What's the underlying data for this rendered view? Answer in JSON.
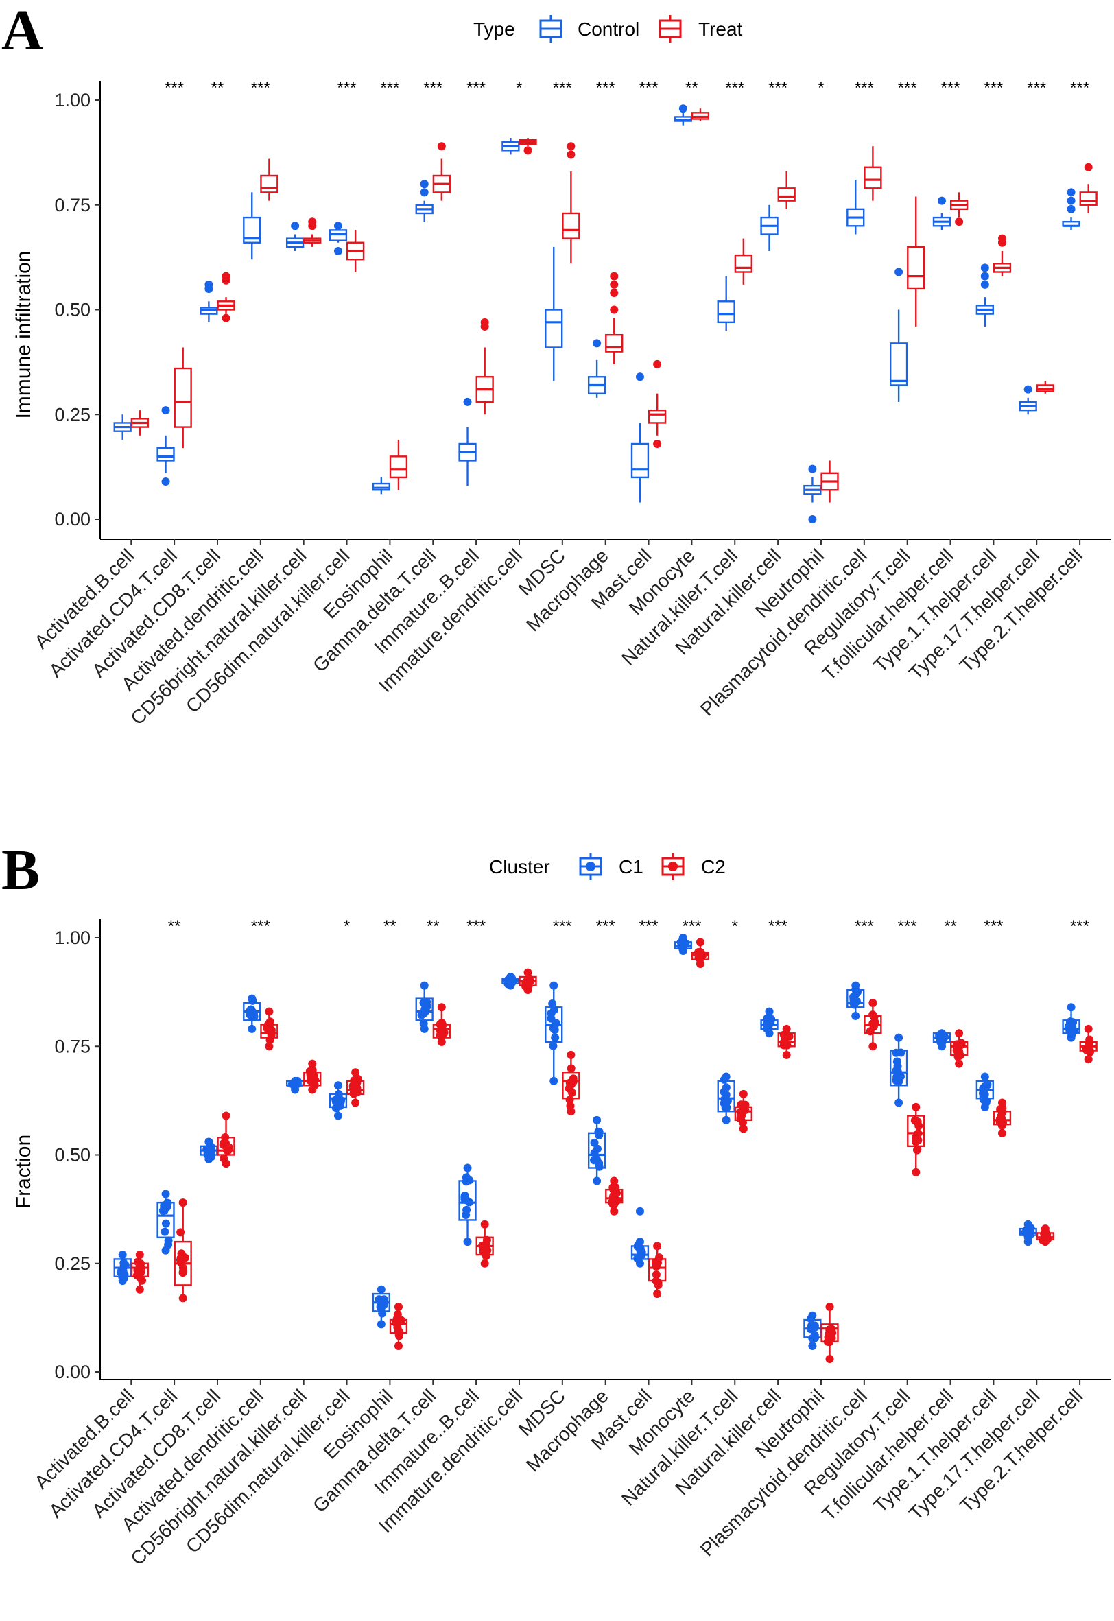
{
  "colors": {
    "control": "#1764e8",
    "treat": "#e8131b"
  },
  "chart_data": [
    {
      "panel": "A",
      "type": "boxplot",
      "ylabel": "Immune infiltration",
      "xlabel": "",
      "ylim": [
        -0.05,
        1.07
      ],
      "yticks": [
        "0.00",
        "0.25",
        "0.50",
        "0.75",
        "1.00"
      ],
      "show_points": false,
      "legend": {
        "title": "Type",
        "entries": [
          "Control",
          "Treat"
        ]
      },
      "categories": [
        "Activated.B.cell",
        "Activated.CD4.T.cell",
        "Activated.CD8.T.cell",
        "Activated.dendritic.cell",
        "CD56bright.natural.killer.cell",
        "CD56dim.natural.killer.cell",
        "Eosinophil",
        "Gamma.delta.T.cell",
        "Immature..B.cell",
        "Immature.dendritic.cell",
        "MDSC",
        "Macrophage",
        "Mast.cell",
        "Monocyte",
        "Natural.killer.T.cell",
        "Natural.killer.cell",
        "Neutrophil",
        "Plasmacytoid.dendritic.cell",
        "Regulatory.T.cell",
        "T.follicular.helper.cell",
        "Type.1.T.helper.cell",
        "Type.17.T.helper.cell",
        "Type.2.T.helper.cell"
      ],
      "significance": [
        "",
        "***",
        "**",
        "***",
        "",
        "***",
        "***",
        "***",
        "***",
        "*",
        "***",
        "***",
        "***",
        "**",
        "***",
        "***",
        "*",
        "***",
        "***",
        "***",
        "***",
        "***",
        "***"
      ],
      "series": [
        {
          "name": "Control",
          "boxes": [
            [
              0.19,
              0.21,
              0.22,
              0.23,
              0.25,
              []
            ],
            [
              0.11,
              0.14,
              0.15,
              0.17,
              0.2,
              [
                0.26,
                0.09
              ]
            ],
            [
              0.47,
              0.49,
              0.5,
              0.505,
              0.52,
              [
                0.55,
                0.56
              ]
            ],
            [
              0.62,
              0.66,
              0.67,
              0.72,
              0.78,
              []
            ],
            [
              0.64,
              0.65,
              0.66,
              0.67,
              0.68,
              [
                0.7
              ]
            ],
            [
              0.66,
              0.665,
              0.68,
              0.69,
              0.7,
              [
                0.64,
                0.7
              ]
            ],
            [
              0.06,
              0.07,
              0.075,
              0.085,
              0.1,
              []
            ],
            [
              0.71,
              0.73,
              0.74,
              0.75,
              0.76,
              [
                0.78,
                0.8
              ]
            ],
            [
              0.08,
              0.14,
              0.16,
              0.18,
              0.22,
              [
                0.28
              ]
            ],
            [
              0.87,
              0.88,
              0.89,
              0.9,
              0.91,
              []
            ],
            [
              0.33,
              0.41,
              0.47,
              0.5,
              0.65,
              []
            ],
            [
              0.29,
              0.3,
              0.32,
              0.34,
              0.38,
              [
                0.42
              ]
            ],
            [
              0.04,
              0.1,
              0.12,
              0.18,
              0.23,
              [
                0.34
              ]
            ],
            [
              0.94,
              0.95,
              0.953,
              0.96,
              0.97,
              [
                0.98
              ]
            ],
            [
              0.45,
              0.47,
              0.49,
              0.52,
              0.58,
              []
            ],
            [
              0.64,
              0.68,
              0.7,
              0.72,
              0.75,
              []
            ],
            [
              0.04,
              0.06,
              0.07,
              0.08,
              0.1,
              [
                0.12,
                0.0
              ]
            ],
            [
              0.68,
              0.7,
              0.72,
              0.74,
              0.81,
              []
            ],
            [
              0.28,
              0.32,
              0.33,
              0.42,
              0.5,
              [
                0.59
              ]
            ],
            [
              0.69,
              0.7,
              0.71,
              0.72,
              0.73,
              [
                0.76
              ]
            ],
            [
              0.46,
              0.49,
              0.5,
              0.51,
              0.53,
              [
                0.56,
                0.58,
                0.6
              ]
            ],
            [
              0.25,
              0.26,
              0.27,
              0.28,
              0.29,
              [
                0.31
              ]
            ],
            [
              0.69,
              0.7,
              0.7,
              0.71,
              0.72,
              [
                0.74,
                0.76,
                0.78
              ]
            ]
          ]
        },
        {
          "name": "Treat",
          "boxes": [
            [
              0.2,
              0.22,
              0.23,
              0.24,
              0.26,
              []
            ],
            [
              0.17,
              0.22,
              0.28,
              0.36,
              0.41,
              []
            ],
            [
              0.48,
              0.5,
              0.51,
              0.52,
              0.53,
              [
                0.48,
                0.57,
                0.58
              ]
            ],
            [
              0.76,
              0.78,
              0.79,
              0.82,
              0.86,
              []
            ],
            [
              0.65,
              0.66,
              0.665,
              0.67,
              0.68,
              [
                0.7,
                0.71
              ]
            ],
            [
              0.59,
              0.62,
              0.64,
              0.66,
              0.69,
              []
            ],
            [
              0.07,
              0.1,
              0.12,
              0.15,
              0.19,
              []
            ],
            [
              0.76,
              0.78,
              0.8,
              0.82,
              0.86,
              [
                0.89
              ]
            ],
            [
              0.25,
              0.28,
              0.31,
              0.34,
              0.41,
              [
                0.46,
                0.47
              ]
            ],
            [
              0.89,
              0.895,
              0.9,
              0.905,
              0.91,
              [
                0.88
              ]
            ],
            [
              0.61,
              0.67,
              0.69,
              0.73,
              0.83,
              [
                0.87,
                0.89
              ]
            ],
            [
              0.37,
              0.4,
              0.41,
              0.44,
              0.48,
              [
                0.5,
                0.54,
                0.56,
                0.58
              ]
            ],
            [
              0.2,
              0.23,
              0.25,
              0.26,
              0.3,
              [
                0.18,
                0.37
              ]
            ],
            [
              0.95,
              0.955,
              0.96,
              0.97,
              0.98,
              []
            ],
            [
              0.56,
              0.59,
              0.6,
              0.63,
              0.67,
              []
            ],
            [
              0.74,
              0.76,
              0.77,
              0.79,
              0.83,
              []
            ],
            [
              0.04,
              0.07,
              0.09,
              0.11,
              0.14,
              []
            ],
            [
              0.76,
              0.79,
              0.81,
              0.84,
              0.89,
              []
            ],
            [
              0.46,
              0.55,
              0.58,
              0.65,
              0.77,
              []
            ],
            [
              0.72,
              0.74,
              0.75,
              0.76,
              0.78,
              [
                0.71
              ]
            ],
            [
              0.58,
              0.59,
              0.6,
              0.61,
              0.64,
              [
                0.66,
                0.67
              ]
            ],
            [
              0.3,
              0.305,
              0.31,
              0.32,
              0.33,
              []
            ],
            [
              0.73,
              0.75,
              0.76,
              0.78,
              0.8,
              [
                0.84
              ]
            ]
          ]
        }
      ]
    },
    {
      "panel": "B",
      "type": "boxplot",
      "ylabel": "Fraction",
      "xlabel": "",
      "ylim": [
        -0.01,
        1.04
      ],
      "yticks": [
        "0.00",
        "0.25",
        "0.50",
        "0.75",
        "1.00"
      ],
      "show_points": true,
      "legend": {
        "title": "Cluster",
        "entries": [
          "C1",
          "C2"
        ]
      },
      "categories": [
        "Activated.B.cell",
        "Activated.CD4.T.cell",
        "Activated.CD8.T.cell",
        "Activated.dendritic.cell",
        "CD56bright.natural.killer.cell",
        "CD56dim.natural.killer.cell",
        "Eosinophil",
        "Gamma.delta.T.cell",
        "Immature..B.cell",
        "Immature.dendritic.cell",
        "MDSC",
        "Macrophage",
        "Mast.cell",
        "Monocyte",
        "Natural.killer.T.cell",
        "Natural.killer.cell",
        "Neutrophil",
        "Plasmacytoid.dendritic.cell",
        "Regulatory.T.cell",
        "T.follicular.helper.cell",
        "Type.1.T.helper.cell",
        "Type.17.T.helper.cell",
        "Type.2.T.helper.cell"
      ],
      "significance": [
        "",
        "**",
        "",
        "***",
        "",
        "*",
        "**",
        "**",
        "***",
        "",
        "***",
        "***",
        "***",
        "***",
        "*",
        "***",
        "",
        "***",
        "***",
        "**",
        "***",
        "",
        "***"
      ],
      "series": [
        {
          "name": "C1",
          "boxes": [
            [
              0.21,
              0.22,
              0.24,
              0.26,
              0.27,
              []
            ],
            [
              0.28,
              0.31,
              0.36,
              0.39,
              0.41,
              []
            ],
            [
              0.49,
              0.5,
              0.51,
              0.52,
              0.53,
              []
            ],
            [
              0.79,
              0.81,
              0.83,
              0.85,
              0.86,
              []
            ],
            [
              0.65,
              0.66,
              0.66,
              0.67,
              0.67,
              []
            ],
            [
              0.59,
              0.61,
              0.63,
              0.64,
              0.66,
              []
            ],
            [
              0.11,
              0.14,
              0.16,
              0.18,
              0.19,
              []
            ],
            [
              0.79,
              0.81,
              0.83,
              0.86,
              0.89,
              []
            ],
            [
              0.3,
              0.35,
              0.39,
              0.44,
              0.47,
              []
            ],
            [
              0.89,
              0.895,
              0.9,
              0.905,
              0.91,
              []
            ],
            [
              0.67,
              0.76,
              0.8,
              0.84,
              0.89,
              []
            ],
            [
              0.44,
              0.47,
              0.5,
              0.55,
              0.58,
              []
            ],
            [
              0.25,
              0.26,
              0.27,
              0.29,
              0.3,
              [
                0.37
              ]
            ],
            [
              0.97,
              0.975,
              0.98,
              0.99,
              1.0,
              []
            ],
            [
              0.58,
              0.6,
              0.63,
              0.67,
              0.68,
              []
            ],
            [
              0.78,
              0.79,
              0.8,
              0.81,
              0.83,
              []
            ],
            [
              0.06,
              0.08,
              0.1,
              0.12,
              0.13,
              []
            ],
            [
              0.82,
              0.84,
              0.85,
              0.88,
              0.89,
              []
            ],
            [
              0.62,
              0.66,
              0.69,
              0.74,
              0.77,
              []
            ],
            [
              0.75,
              0.76,
              0.77,
              0.78,
              0.78,
              []
            ],
            [
              0.61,
              0.63,
              0.65,
              0.67,
              0.68,
              []
            ],
            [
              0.31,
              0.315,
              0.32,
              0.33,
              0.34,
              [
                0.3
              ]
            ],
            [
              0.77,
              0.78,
              0.79,
              0.81,
              0.84,
              []
            ]
          ]
        },
        {
          "name": "C2",
          "boxes": [
            [
              0.19,
              0.22,
              0.24,
              0.25,
              0.27,
              []
            ],
            [
              0.17,
              0.2,
              0.25,
              0.3,
              0.39,
              []
            ],
            [
              0.48,
              0.5,
              0.51,
              0.54,
              0.59,
              []
            ],
            [
              0.75,
              0.77,
              0.78,
              0.8,
              0.83,
              []
            ],
            [
              0.65,
              0.66,
              0.67,
              0.69,
              0.71,
              []
            ],
            [
              0.62,
              0.64,
              0.65,
              0.67,
              0.69,
              []
            ],
            [
              0.06,
              0.09,
              0.11,
              0.12,
              0.15,
              []
            ],
            [
              0.76,
              0.77,
              0.79,
              0.8,
              0.84,
              []
            ],
            [
              0.25,
              0.27,
              0.29,
              0.31,
              0.34,
              []
            ],
            [
              0.88,
              0.89,
              0.9,
              0.91,
              0.92,
              []
            ],
            [
              0.6,
              0.63,
              0.67,
              0.69,
              0.73,
              []
            ],
            [
              0.37,
              0.39,
              0.4,
              0.42,
              0.44,
              []
            ],
            [
              0.18,
              0.21,
              0.24,
              0.26,
              0.29,
              []
            ],
            [
              0.94,
              0.95,
              0.96,
              0.965,
              0.99,
              []
            ],
            [
              0.56,
              0.58,
              0.6,
              0.61,
              0.64,
              []
            ],
            [
              0.73,
              0.75,
              0.76,
              0.78,
              0.79,
              []
            ],
            [
              0.03,
              0.07,
              0.1,
              0.11,
              0.15,
              []
            ],
            [
              0.75,
              0.78,
              0.8,
              0.82,
              0.85,
              []
            ],
            [
              0.46,
              0.52,
              0.55,
              0.59,
              0.61,
              []
            ],
            [
              0.71,
              0.73,
              0.75,
              0.76,
              0.78,
              []
            ],
            [
              0.55,
              0.57,
              0.58,
              0.6,
              0.62,
              []
            ],
            [
              0.3,
              0.305,
              0.31,
              0.32,
              0.33,
              []
            ],
            [
              0.72,
              0.74,
              0.75,
              0.76,
              0.79,
              []
            ]
          ]
        }
      ]
    }
  ]
}
